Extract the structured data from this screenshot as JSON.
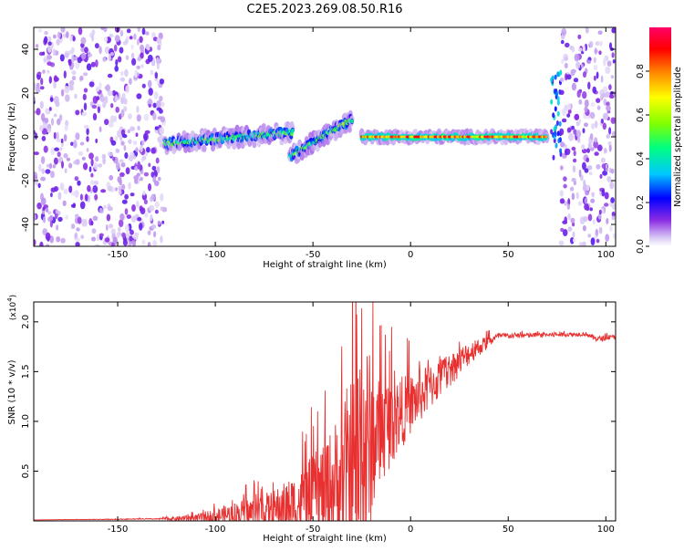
{
  "title": "C2E5.2023.269.08.50.R16",
  "chart_data": [
    {
      "type": "heatmap",
      "xlabel": "Height of straight line (km)",
      "ylabel": "Frequency (Hz)",
      "xlim": [
        -193,
        105
      ],
      "ylim": [
        -50,
        50
      ],
      "xticks": [
        -150,
        -100,
        -50,
        0,
        50,
        100
      ],
      "yticks": [
        -40,
        -20,
        0,
        20,
        40
      ],
      "colorbar": {
        "label": "Normalized spectral amplitude",
        "range": [
          0,
          1
        ],
        "ticks": [
          0.0,
          0.2,
          0.4,
          0.6,
          0.8
        ],
        "colormap": [
          "#ffffff",
          "#d8c8f4",
          "#8a2be2",
          "#0000ff",
          "#00c8ff",
          "#00ff80",
          "#80ff00",
          "#ffff00",
          "#ff8000",
          "#ff0000",
          "#ff0066"
        ]
      },
      "features": [
        {
          "region": "noise-left",
          "x": [
            -193,
            -126
          ],
          "freq": [
            -50,
            50
          ],
          "amplitude": 0.15
        },
        {
          "region": "band-low",
          "x": [
            -126,
            -60
          ],
          "freq_start": -3,
          "freq_end": 2,
          "amplitude": 0.45
        },
        {
          "region": "ramp",
          "x": [
            -62,
            -30
          ],
          "freq_start": -9,
          "freq_end": 8,
          "amplitude": 0.45
        },
        {
          "region": "echo-bright",
          "x": [
            -25,
            70
          ],
          "freq": 0,
          "amplitude": 0.85
        },
        {
          "region": "spike",
          "x": [
            72,
            77
          ],
          "freq": [
            -10,
            30
          ],
          "amplitude": 0.35
        },
        {
          "region": "noise-right",
          "x": [
            77,
            105
          ],
          "freq": [
            -50,
            50
          ],
          "amplitude": 0.15
        }
      ]
    },
    {
      "type": "line",
      "xlabel": "Height of straight line (km)",
      "ylabel": "SNR (10 * v/v)",
      "yunit_exponent": "(x10",
      "yunit_power": "4",
      "yunit_close": ")",
      "xlim": [
        -193,
        105
      ],
      "ylim": [
        0,
        2.2
      ],
      "xticks": [
        -150,
        -100,
        -50,
        0,
        50,
        100
      ],
      "yticks": [
        0.5,
        1.0,
        1.5,
        2.0
      ],
      "ytick_labels": [
        "0.5",
        "1.0",
        "1.5",
        "2.0"
      ],
      "color": "#e83030",
      "envelope": [
        {
          "x": -193,
          "base": 0.01,
          "amp": 0.0
        },
        {
          "x": -130,
          "base": 0.02,
          "amp": 0.005
        },
        {
          "x": -110,
          "base": 0.03,
          "amp": 0.04
        },
        {
          "x": -90,
          "base": 0.08,
          "amp": 0.12
        },
        {
          "x": -70,
          "base": 0.13,
          "amp": 0.2
        },
        {
          "x": -55,
          "base": 0.22,
          "amp": 0.35
        },
        {
          "x": -40,
          "base": 0.4,
          "amp": 0.6
        },
        {
          "x": -30,
          "base": 0.6,
          "amp": 1.0
        },
        {
          "x": -25,
          "base": 0.8,
          "amp": 1.4
        },
        {
          "x": -18,
          "base": 0.9,
          "amp": 0.6
        },
        {
          "x": -10,
          "base": 1.05,
          "amp": 0.45
        },
        {
          "x": 0,
          "base": 1.2,
          "amp": 0.3
        },
        {
          "x": 15,
          "base": 1.45,
          "amp": 0.2
        },
        {
          "x": 30,
          "base": 1.7,
          "amp": 0.12
        },
        {
          "x": 45,
          "base": 1.86,
          "amp": 0.03
        },
        {
          "x": 90,
          "base": 1.88,
          "amp": 0.02
        },
        {
          "x": 95,
          "base": 1.83,
          "amp": 0.03
        },
        {
          "x": 105,
          "base": 1.85,
          "amp": 0.02
        }
      ]
    }
  ]
}
